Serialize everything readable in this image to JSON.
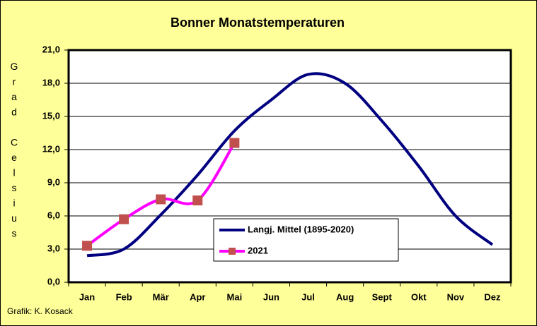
{
  "chart_data": {
    "type": "line",
    "title": "Bonner Monatstemperaturen",
    "y_label": "Grad Celsius",
    "footer": "Grafik:  K. Kosack",
    "categories": [
      "Jan",
      "Feb",
      "Mär",
      "Apr",
      "Mai",
      "Jun",
      "Jul",
      "Aug",
      "Sept",
      "Okt",
      "Nov",
      "Dez"
    ],
    "series": [
      {
        "name": "Langj. Mittel (1895-2020)",
        "color": "#000080",
        "smooth": true,
        "values": [
          2.4,
          3.0,
          6.1,
          9.7,
          13.7,
          16.5,
          18.8,
          18.0,
          14.6,
          10.5,
          6.0,
          3.4
        ]
      },
      {
        "name": "2021",
        "color": "#ff00ff",
        "marker_color": "#c0504d",
        "smooth": true,
        "values": [
          3.3,
          5.7,
          7.5,
          7.4,
          12.6,
          null,
          null,
          null,
          null,
          null,
          null,
          null
        ]
      }
    ],
    "ylim": [
      0,
      21
    ],
    "yticks": [
      {
        "value": 0,
        "label": "0,0"
      },
      {
        "value": 3,
        "label": "3,0"
      },
      {
        "value": 6,
        "label": "6,0"
      },
      {
        "value": 9,
        "label": "9,0"
      },
      {
        "value": 12,
        "label": "12,0"
      },
      {
        "value": 15,
        "label": "15,0"
      },
      {
        "value": 18,
        "label": "18,0"
      },
      {
        "value": 21,
        "label": "21,0"
      }
    ],
    "grid": true
  }
}
